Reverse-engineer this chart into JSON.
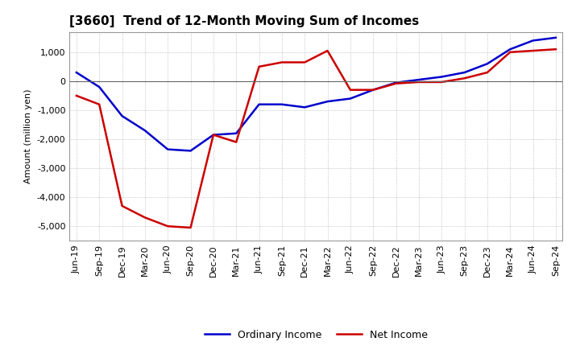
{
  "title": "[3660]  Trend of 12-Month Moving Sum of Incomes",
  "ylabel": "Amount (million yen)",
  "x_labels": [
    "Jun-19",
    "Sep-19",
    "Dec-19",
    "Mar-20",
    "Jun-20",
    "Sep-20",
    "Dec-20",
    "Mar-21",
    "Jun-21",
    "Sep-21",
    "Dec-21",
    "Mar-22",
    "Jun-22",
    "Sep-22",
    "Dec-22",
    "Mar-23",
    "Jun-23",
    "Sep-23",
    "Dec-23",
    "Mar-24",
    "Jun-24",
    "Sep-24"
  ],
  "ordinary_income": [
    300,
    -200,
    -1200,
    -1700,
    -2350,
    -2400,
    -1850,
    -1800,
    -800,
    -800,
    -900,
    -700,
    -600,
    -300,
    -50,
    50,
    150,
    300,
    600,
    1100,
    1400,
    1500
  ],
  "net_income": [
    -500,
    -800,
    -4300,
    -4700,
    -5000,
    -5050,
    -1850,
    -2100,
    500,
    650,
    650,
    1050,
    -300,
    -300,
    -80,
    -30,
    -30,
    100,
    300,
    1000,
    1050,
    1100
  ],
  "ordinary_color": "#0000cc",
  "net_color": "#cc0000",
  "ylim": [
    -5500,
    1700
  ],
  "yticks": [
    -5000,
    -4000,
    -3000,
    -2000,
    -1000,
    0,
    1000
  ],
  "background_color": "#ffffff",
  "grid_color": "#aaaaaa",
  "line_width": 1.8,
  "title_fontsize": 11,
  "axis_label_fontsize": 8,
  "tick_fontsize": 8
}
